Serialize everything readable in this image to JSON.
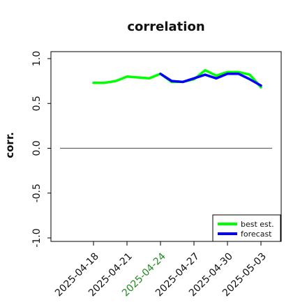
{
  "chart_data": {
    "type": "line",
    "title": "correlation",
    "xlabel": "",
    "ylabel": "corr.",
    "ylim": [
      -1.0,
      1.0
    ],
    "yticks": [
      -1.0,
      -0.5,
      0.0,
      0.5,
      1.0
    ],
    "ytick_labels": [
      "-1.0",
      "-0.5",
      "0.0",
      "0.5",
      "1.0"
    ],
    "x": [
      "2025-04-15",
      "2025-04-16",
      "2025-04-17",
      "2025-04-18",
      "2025-04-19",
      "2025-04-20",
      "2025-04-21",
      "2025-04-22",
      "2025-04-23",
      "2025-04-24",
      "2025-04-25",
      "2025-04-26",
      "2025-04-27",
      "2025-04-28",
      "2025-04-29",
      "2025-04-30",
      "2025-05-01",
      "2025-05-02",
      "2025-05-03",
      "2025-05-04"
    ],
    "xlim": [
      "2025-04-15",
      "2025-05-04"
    ],
    "xticks": [
      "2025-04-18",
      "2025-04-21",
      "2025-04-24",
      "2025-04-27",
      "2025-04-30",
      "2025-05-03"
    ],
    "highlight_tick": "2025-04-24",
    "highlight_color": "#228B22",
    "reference_line": 0.0,
    "series": [
      {
        "name": "best est.",
        "color": "#00ff00",
        "x": [
          "2025-04-18",
          "2025-04-19",
          "2025-04-20",
          "2025-04-21",
          "2025-04-22",
          "2025-04-23",
          "2025-04-24",
          "2025-04-25",
          "2025-04-26",
          "2025-04-27",
          "2025-04-28",
          "2025-04-29",
          "2025-04-30",
          "2025-05-01",
          "2025-05-02",
          "2025-05-03"
        ],
        "values": [
          0.73,
          0.73,
          0.75,
          0.8,
          0.79,
          0.78,
          0.83,
          0.74,
          0.74,
          0.77,
          0.87,
          0.81,
          0.85,
          0.85,
          0.82,
          0.68
        ]
      },
      {
        "name": "forecast",
        "color": "#0000ff",
        "x": [
          "2025-04-24",
          "2025-04-25",
          "2025-04-26",
          "2025-04-27",
          "2025-04-28",
          "2025-04-29",
          "2025-04-30",
          "2025-05-01",
          "2025-05-02",
          "2025-05-03"
        ],
        "values": [
          0.83,
          0.75,
          0.74,
          0.78,
          0.82,
          0.78,
          0.83,
          0.83,
          0.77,
          0.7
        ]
      }
    ],
    "legend": "bottom-right",
    "grid": false
  }
}
